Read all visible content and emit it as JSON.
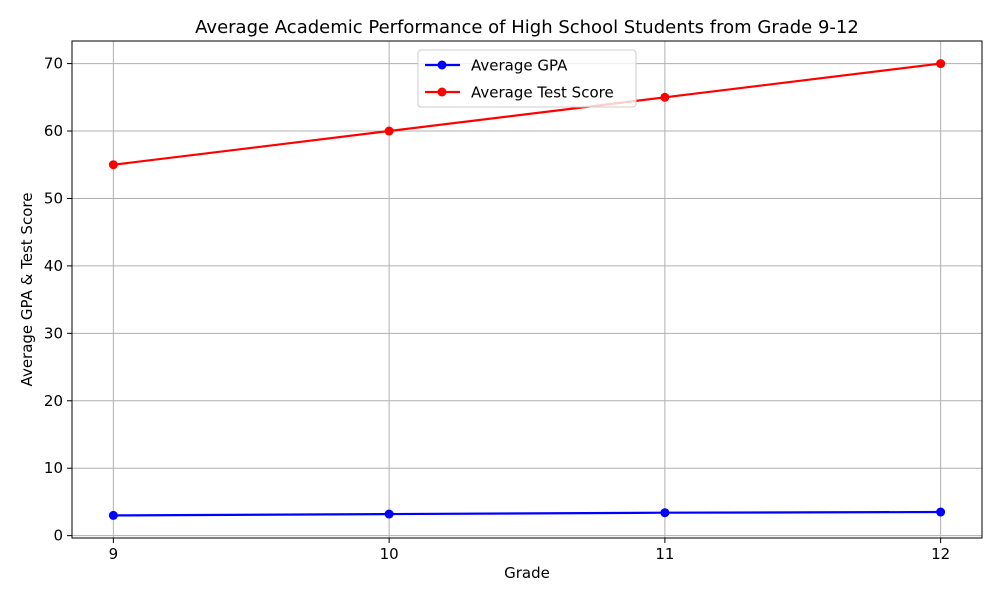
{
  "chart_data": {
    "type": "line",
    "title": "Average Academic Performance of High School Students from Grade 9-12",
    "xlabel": "Grade",
    "ylabel": "Average GPA & Test Score",
    "x": [
      9,
      10,
      11,
      12
    ],
    "xticks": [
      "9",
      "10",
      "11",
      "12"
    ],
    "xlim": [
      8.85,
      12.15
    ],
    "ylim": [
      -0.35,
      73.35
    ],
    "yticks": [
      0,
      10,
      20,
      30,
      40,
      50,
      60,
      70
    ],
    "grid": true,
    "legend_position": "top-center",
    "series": [
      {
        "name": "Average GPA",
        "color": "#0000ff",
        "values": [
          3.0,
          3.2,
          3.4,
          3.5
        ]
      },
      {
        "name": "Average Test Score",
        "color": "#ff0000",
        "values": [
          55,
          60,
          65,
          70
        ]
      }
    ]
  }
}
